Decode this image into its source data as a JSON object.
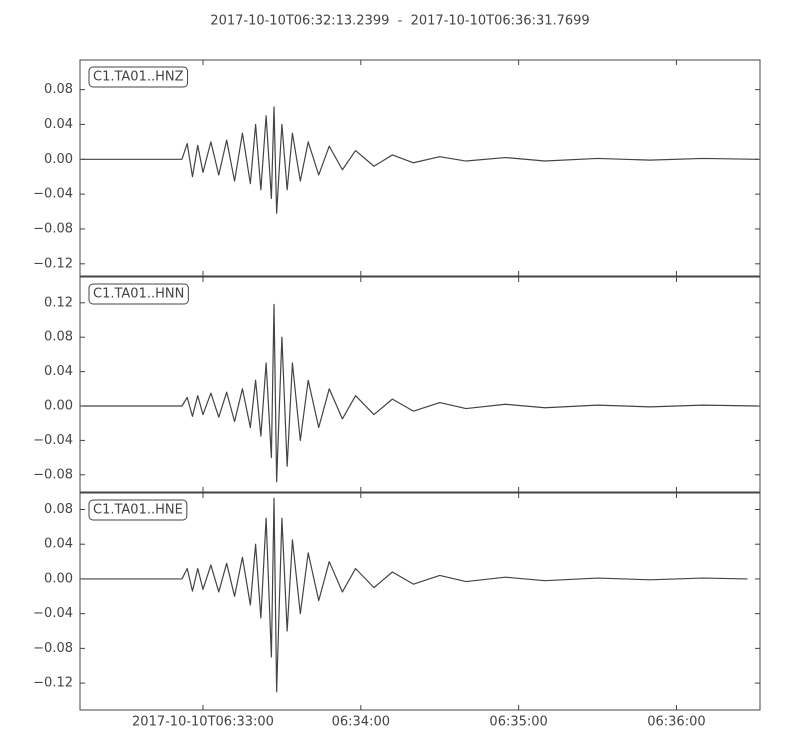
{
  "title": "2017-10-10T06:32:13.2399  -  2017-10-10T06:36:31.7699",
  "xlim": [
    "2017-10-10T06:32:13.2399",
    "2017-10-10T06:36:31.7699"
  ],
  "xticks": [
    "2017-10-10T06:33:00",
    {
      "value": "2017-10-10T06:34:00",
      "label": "06:34:00"
    },
    {
      "value": "2017-10-10T06:35:00",
      "label": "06:35:00"
    },
    {
      "value": "2017-10-10T06:36:00",
      "label": "06:36:00"
    }
  ],
  "chart_data": [
    {
      "type": "line",
      "x": [
        "06:32:14",
        "06:32:52",
        "06:32:54",
        "06:32:56",
        "06:32:58",
        "06:33:00",
        "06:33:03",
        "06:33:06",
        "06:33:09",
        "06:33:12",
        "06:33:15",
        "06:33:18",
        "06:33:20",
        "06:33:22",
        "06:33:24",
        "06:33:26",
        "06:33:27",
        "06:33:28",
        "06:33:30",
        "06:33:32",
        "06:33:34",
        "06:33:37",
        "06:33:40",
        "06:33:44",
        "06:33:48",
        "06:33:53",
        "06:33:58",
        "06:34:05",
        "06:34:12",
        "06:34:20",
        "06:34:30",
        "06:34:40",
        "06:34:55",
        "06:35:10",
        "06:35:30",
        "06:35:50",
        "06:36:10",
        "06:36:31"
      ],
      "series": [
        {
          "name": "C1.TA01..HNZ",
          "color": "#444444",
          "values": [
            0,
            0,
            0.018,
            -0.02,
            0.016,
            -0.015,
            0.02,
            -0.018,
            0.022,
            -0.025,
            0.03,
            -0.028,
            0.04,
            -0.035,
            0.05,
            -0.045,
            0.06,
            -0.062,
            0.04,
            -0.035,
            0.03,
            -0.025,
            0.02,
            -0.018,
            0.015,
            -0.012,
            0.01,
            -0.008,
            0.005,
            -0.004,
            0.003,
            -0.002,
            0.002,
            -0.002,
            0.001,
            -0.001,
            0.001,
            0
          ]
        }
      ],
      "ylim": [
        -0.134,
        0.114
      ],
      "yticks": [
        {
          "value": -0.12,
          "label": "−0.12"
        },
        {
          "value": -0.08,
          "label": "−0.08"
        },
        {
          "value": -0.04,
          "label": "−0.04"
        },
        {
          "value": 0,
          "label": "0.00"
        },
        0.04,
        0.08
      ]
    },
    {
      "type": "line",
      "x": [
        "06:32:14",
        "06:32:52",
        "06:32:54",
        "06:32:56",
        "06:32:58",
        "06:33:00",
        "06:33:03",
        "06:33:06",
        "06:33:09",
        "06:33:12",
        "06:33:15",
        "06:33:18",
        "06:33:20",
        "06:33:22",
        "06:33:24",
        "06:33:26",
        "06:33:27",
        "06:33:28",
        "06:33:30",
        "06:33:32",
        "06:33:34",
        "06:33:37",
        "06:33:40",
        "06:33:44",
        "06:33:48",
        "06:33:53",
        "06:33:58",
        "06:34:05",
        "06:34:12",
        "06:34:20",
        "06:34:30",
        "06:34:40",
        "06:34:55",
        "06:35:10",
        "06:35:30",
        "06:35:50",
        "06:36:10",
        "06:36:31"
      ],
      "series": [
        {
          "name": "C1.TA01..HNN",
          "color": "#444444",
          "values": [
            0,
            0,
            0.01,
            -0.012,
            0.012,
            -0.01,
            0.015,
            -0.013,
            0.016,
            -0.018,
            0.02,
            -0.025,
            0.03,
            -0.035,
            0.05,
            -0.06,
            0.118,
            -0.088,
            0.08,
            -0.07,
            0.05,
            -0.04,
            0.03,
            -0.025,
            0.02,
            -0.015,
            0.012,
            -0.01,
            0.008,
            -0.006,
            0.004,
            -0.003,
            0.002,
            -0.002,
            0.001,
            -0.001,
            0.001,
            0
          ]
        }
      ],
      "ylim": [
        -0.1,
        0.15
      ],
      "yticks": [
        {
          "value": -0.08,
          "label": "−0.08"
        },
        {
          "value": -0.04,
          "label": "−0.04"
        },
        {
          "value": 0,
          "label": "0.00"
        },
        0.04,
        0.08,
        0.12
      ]
    },
    {
      "type": "line",
      "x": [
        "06:32:14",
        "06:32:52",
        "06:32:54",
        "06:32:56",
        "06:32:58",
        "06:33:00",
        "06:33:03",
        "06:33:06",
        "06:33:09",
        "06:33:12",
        "06:33:15",
        "06:33:18",
        "06:33:20",
        "06:33:22",
        "06:33:24",
        "06:33:26",
        "06:33:27",
        "06:33:28",
        "06:33:30",
        "06:33:32",
        "06:33:34",
        "06:33:37",
        "06:33:40",
        "06:33:44",
        "06:33:48",
        "06:33:53",
        "06:33:58",
        "06:34:05",
        "06:34:12",
        "06:34:20",
        "06:34:30",
        "06:34:40",
        "06:34:55",
        "06:35:10",
        "06:35:30",
        "06:35:50",
        "06:36:10",
        "06:36:27"
      ],
      "series": [
        {
          "name": "C1.TA01..HNE",
          "color": "#444444",
          "values": [
            0,
            0,
            0.012,
            -0.014,
            0.012,
            -0.012,
            0.016,
            -0.015,
            0.018,
            -0.02,
            0.025,
            -0.03,
            0.04,
            -0.045,
            0.07,
            -0.09,
            0.093,
            -0.13,
            0.07,
            -0.06,
            0.045,
            -0.04,
            0.03,
            -0.025,
            0.02,
            -0.015,
            0.012,
            -0.01,
            0.008,
            -0.006,
            0.004,
            -0.003,
            0.002,
            -0.002,
            0.001,
            -0.001,
            0.001,
            0
          ]
        }
      ],
      "ylim": [
        -0.151,
        0.099
      ],
      "yticks": [
        {
          "value": -0.12,
          "label": "−0.12"
        },
        {
          "value": -0.08,
          "label": "−0.08"
        },
        {
          "value": -0.04,
          "label": "−0.04"
        },
        {
          "value": 0,
          "label": "0.00"
        },
        0.04,
        0.08
      ]
    }
  ]
}
